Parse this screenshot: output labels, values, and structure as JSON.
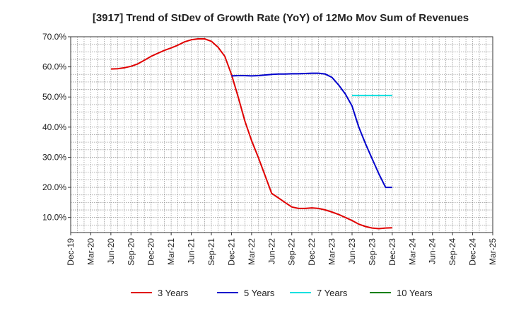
{
  "chart_data": {
    "type": "line",
    "title": "[3917]  Trend of StDev of Growth Rate (YoY) of 12Mo Mov Sum of Revenues",
    "xlabel": "",
    "ylabel": "",
    "ylim": [
      5,
      70
    ],
    "yticks": [
      10,
      20,
      30,
      40,
      50,
      60,
      70
    ],
    "ytick_labels": [
      "10.0%",
      "20.0%",
      "30.0%",
      "40.0%",
      "50.0%",
      "60.0%",
      "70.0%"
    ],
    "x_tick_labels": [
      "Dec-19",
      "Mar-20",
      "Jun-20",
      "Sep-20",
      "Dec-20",
      "Mar-21",
      "Jun-21",
      "Sep-21",
      "Dec-21",
      "Mar-22",
      "Jun-22",
      "Sep-22",
      "Dec-22",
      "Mar-23",
      "Jun-23",
      "Sep-23",
      "Dec-23",
      "Mar-24",
      "Jun-24",
      "Sep-24",
      "Dec-24",
      "Mar-25"
    ],
    "grid": true,
    "legend_position": "bottom",
    "series": [
      {
        "name": "3 Years",
        "color": "#e00000",
        "points": [
          [
            6,
            59.3
          ],
          [
            7,
            59.4
          ],
          [
            8,
            59.7
          ],
          [
            9,
            60.2
          ],
          [
            10,
            61
          ],
          [
            11,
            62.2
          ],
          [
            12,
            63.5
          ],
          [
            13,
            64.5
          ],
          [
            14,
            65.5
          ],
          [
            15,
            66.3
          ],
          [
            16,
            67.2
          ],
          [
            17,
            68.3
          ],
          [
            18,
            69
          ],
          [
            19,
            69.3
          ],
          [
            20,
            69.3
          ],
          [
            21,
            68.5
          ],
          [
            22,
            66.5
          ],
          [
            23,
            63.5
          ],
          [
            24,
            57.5
          ],
          [
            25,
            50
          ],
          [
            26,
            42
          ],
          [
            27,
            35.5
          ],
          [
            28,
            30
          ],
          [
            29,
            24
          ],
          [
            30,
            18
          ],
          [
            31,
            16.5
          ],
          [
            32,
            15
          ],
          [
            33,
            13.5
          ],
          [
            34,
            13
          ],
          [
            35,
            13
          ],
          [
            36,
            13.2
          ],
          [
            37,
            13
          ],
          [
            38,
            12.5
          ],
          [
            39,
            11.8
          ],
          [
            40,
            11
          ],
          [
            41,
            10
          ],
          [
            42,
            9
          ],
          [
            43,
            7.8
          ],
          [
            44,
            7
          ],
          [
            45,
            6.5
          ],
          [
            46,
            6.3
          ],
          [
            47,
            6.5
          ],
          [
            48,
            6.6
          ]
        ]
      },
      {
        "name": "5 Years",
        "color": "#0000cc",
        "points": [
          [
            24,
            57
          ],
          [
            25,
            57.1
          ],
          [
            26,
            57.1
          ],
          [
            27,
            57
          ],
          [
            28,
            57.1
          ],
          [
            29,
            57.3
          ],
          [
            30,
            57.5
          ],
          [
            31,
            57.6
          ],
          [
            32,
            57.6
          ],
          [
            33,
            57.7
          ],
          [
            34,
            57.7
          ],
          [
            35,
            57.8
          ],
          [
            36,
            57.9
          ],
          [
            37,
            57.9
          ],
          [
            38,
            57.6
          ],
          [
            39,
            56.5
          ],
          [
            40,
            54
          ],
          [
            41,
            51
          ],
          [
            42,
            47
          ],
          [
            43,
            40
          ],
          [
            44,
            34.5
          ],
          [
            45,
            29.5
          ],
          [
            46,
            24.5
          ],
          [
            47,
            20
          ],
          [
            48,
            20
          ]
        ]
      },
      {
        "name": "7 Years",
        "color": "#00e0e0",
        "points": [
          [
            42,
            50.5
          ],
          [
            43,
            50.5
          ],
          [
            44,
            50.5
          ],
          [
            45,
            50.5
          ],
          [
            46,
            50.5
          ],
          [
            47,
            50.5
          ],
          [
            48,
            50.5
          ]
        ]
      },
      {
        "name": "10 Years",
        "color": "#008000",
        "points": []
      }
    ]
  }
}
